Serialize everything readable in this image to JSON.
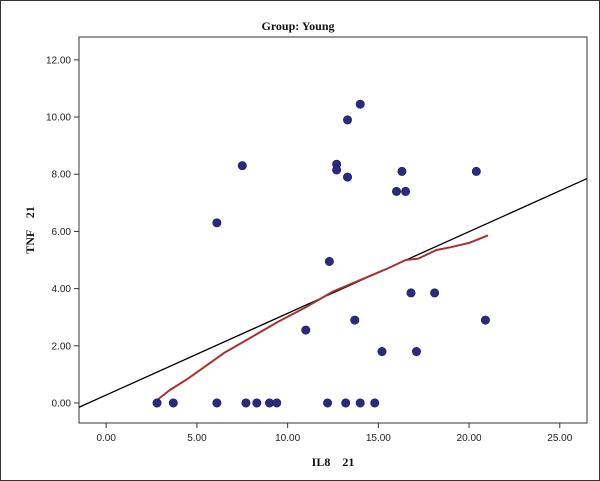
{
  "chart_data": {
    "type": "scatter",
    "title": "Group: Young",
    "xlabel": "IL8    21",
    "ylabel": "TNF    21",
    "xlim": [
      -1.5,
      26.5
    ],
    "ylim": [
      -0.7,
      12.8
    ],
    "xticks": [
      "0.00",
      "5.00",
      "10.00",
      "15.00",
      "20.00",
      "25.00"
    ],
    "xtick_values": [
      0,
      5,
      10,
      15,
      20,
      25
    ],
    "yticks": [
      "0.00",
      "2.00",
      "4.00",
      "6.00",
      "8.00",
      "10.00",
      "12.00"
    ],
    "ytick_values": [
      0,
      2,
      4,
      6,
      8,
      10,
      12
    ],
    "grid": false,
    "points": [
      {
        "x": 2.8,
        "y": 0.0
      },
      {
        "x": 3.7,
        "y": 0.0
      },
      {
        "x": 6.1,
        "y": 0.0
      },
      {
        "x": 7.7,
        "y": 0.0
      },
      {
        "x": 8.3,
        "y": 0.0
      },
      {
        "x": 9.0,
        "y": 0.0
      },
      {
        "x": 9.4,
        "y": 0.0
      },
      {
        "x": 12.2,
        "y": 0.0
      },
      {
        "x": 13.2,
        "y": 0.0
      },
      {
        "x": 14.0,
        "y": 0.0
      },
      {
        "x": 14.8,
        "y": 0.0
      },
      {
        "x": 6.1,
        "y": 6.3
      },
      {
        "x": 7.5,
        "y": 8.3
      },
      {
        "x": 11.0,
        "y": 2.55
      },
      {
        "x": 12.3,
        "y": 4.95
      },
      {
        "x": 12.7,
        "y": 8.35
      },
      {
        "x": 12.7,
        "y": 8.15
      },
      {
        "x": 13.3,
        "y": 9.9
      },
      {
        "x": 13.3,
        "y": 7.9
      },
      {
        "x": 13.7,
        "y": 2.9
      },
      {
        "x": 14.0,
        "y": 10.45
      },
      {
        "x": 15.2,
        "y": 1.8
      },
      {
        "x": 16.0,
        "y": 7.4
      },
      {
        "x": 16.3,
        "y": 8.1
      },
      {
        "x": 16.5,
        "y": 7.4
      },
      {
        "x": 16.8,
        "y": 3.85
      },
      {
        "x": 17.1,
        "y": 1.8
      },
      {
        "x": 18.1,
        "y": 3.85
      },
      {
        "x": 20.4,
        "y": 8.1
      },
      {
        "x": 20.9,
        "y": 2.9
      }
    ],
    "fit_line": {
      "x": [
        -1.5,
        26.5
      ],
      "y": [
        -0.15,
        7.85
      ]
    },
    "loess_curve": {
      "x": [
        2.8,
        3.5,
        4.5,
        5.5,
        6.5,
        8.0,
        9.5,
        11.0,
        12.5,
        14.0,
        15.5,
        16.5,
        17.2,
        18.2,
        19.0,
        20.0,
        21.0
      ],
      "y": [
        0.1,
        0.45,
        0.85,
        1.3,
        1.75,
        2.3,
        2.85,
        3.35,
        3.9,
        4.3,
        4.7,
        5.0,
        5.05,
        5.35,
        5.45,
        5.6,
        5.85
      ]
    },
    "colors": {
      "points": "#2b2a7e",
      "fit_line": "#000000",
      "loess": "#a83232",
      "axis": "#333333"
    }
  }
}
